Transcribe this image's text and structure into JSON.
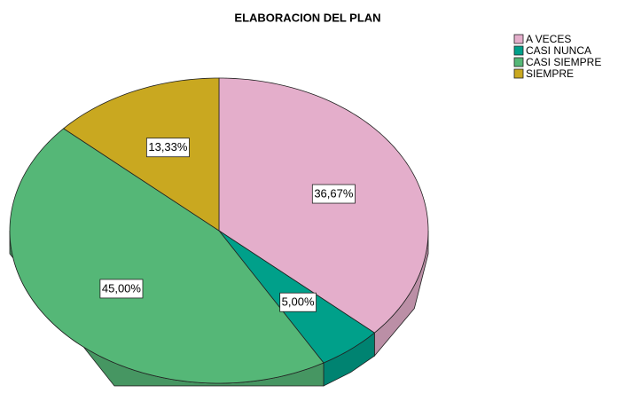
{
  "chart_data": {
    "type": "pie",
    "title": "ELABORACION DEL PLAN",
    "categories": [
      "A VECES",
      "CASI NUNCA",
      "CASI SIEMPRE",
      "SIEMPRE"
    ],
    "values": [
      36.67,
      5.0,
      45.0,
      13.33
    ],
    "value_labels": [
      "36,67%",
      "5,00%",
      "45,00%",
      "13,33%"
    ],
    "colors": [
      "#e4aecb",
      "#00a08a",
      "#55b777",
      "#c9a820"
    ],
    "legend": "top-right"
  }
}
